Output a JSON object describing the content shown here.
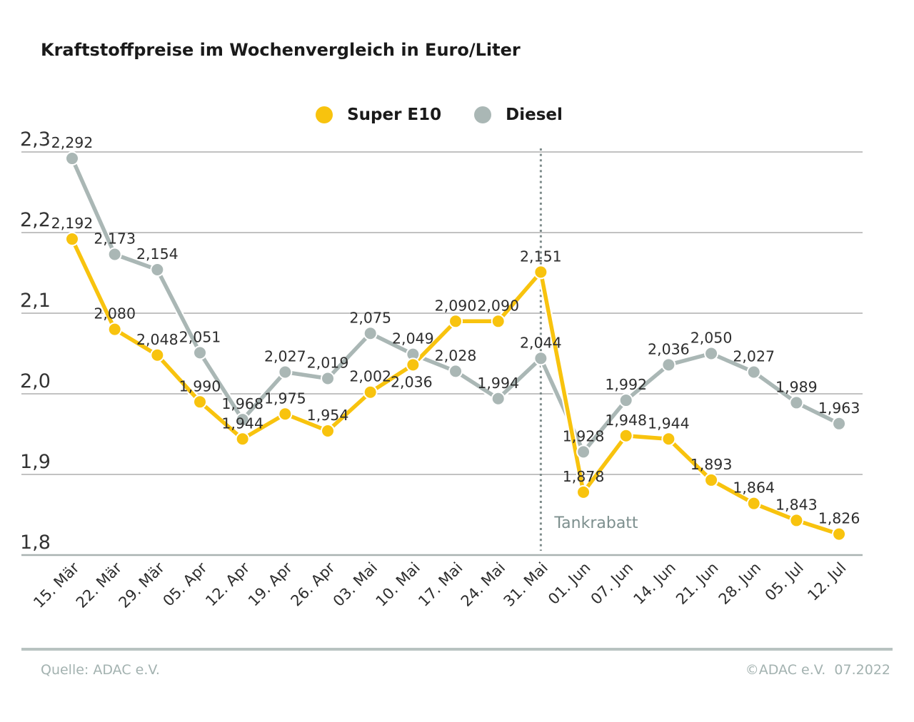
{
  "title": "Kraftstoffpreise im Wochenvergleich in Euro/Liter",
  "legend": [
    {
      "label": "Super E10",
      "color": "#F8C30E"
    },
    {
      "label": "Diesel",
      "color": "#AAB7B5"
    }
  ],
  "chart_data": {
    "type": "line",
    "title": "Kraftstoffpreise im Wochenvergleich in Euro/Liter",
    "categories": [
      "15. Mär",
      "22. Mär",
      "29. Mär",
      "05. Apr",
      "12. Apr",
      "19. Apr",
      "26. Apr",
      "03. Mai",
      "10. Mai",
      "17. Mai",
      "24. Mai",
      "31. Mai",
      "01. Jun",
      "07. Jun",
      "14. Jun",
      "21. Jun",
      "28. Jun",
      "05. Jul",
      "12. Jul"
    ],
    "series": [
      {
        "name": "Super E10",
        "color": "#F8C30E",
        "values": [
          2.192,
          2.08,
          2.048,
          1.99,
          1.944,
          1.975,
          1.954,
          2.002,
          2.036,
          2.09,
          2.09,
          2.151,
          1.878,
          1.948,
          1.944,
          1.893,
          1.864,
          1.843,
          1.826
        ]
      },
      {
        "name": "Diesel",
        "color": "#AAB7B5",
        "values": [
          2.292,
          2.173,
          2.154,
          2.051,
          1.968,
          2.027,
          2.019,
          2.075,
          2.049,
          2.028,
          1.994,
          2.044,
          1.928,
          1.992,
          2.036,
          2.05,
          2.027,
          1.989,
          1.963
        ]
      }
    ],
    "ylim": [
      1.8,
      2.3
    ],
    "ytick_values": [
      2.3,
      2.2,
      2.1,
      2.0,
      1.9,
      1.8
    ],
    "ytick_labels": [
      "2,3",
      "2,2",
      "2,1",
      "2,0",
      "1,9",
      "1,8"
    ],
    "grid": true,
    "legend_position": "top-center",
    "decimal_format": "comma",
    "value_labels": true,
    "annotation": {
      "label": "Tankrabatt",
      "category": "31. Mai",
      "category_index": 11,
      "line_style": "dotted",
      "color": "#7D8F8E"
    },
    "colors": {
      "grid": "#9D9D9D",
      "axis": "#A9B2B1",
      "value_label": "#2D2D2D",
      "tick_label": "#333333"
    }
  },
  "footer": {
    "source": "Quelle: ADAC e.V.",
    "copyright": "©ADAC e.V.  07.2022"
  }
}
